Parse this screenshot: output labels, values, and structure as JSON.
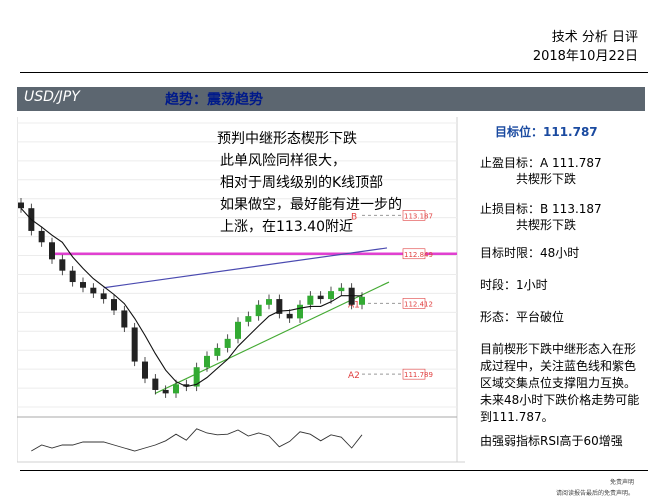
{
  "header": {
    "title": "技术 分析 日评",
    "date": "2018年10月22日"
  },
  "titlebar": {
    "pair": "USD/JPY",
    "trend": "趋势：震荡趋势"
  },
  "annotation": [
    "预判中继形态楔形下跌",
    "此单风险同样很大，",
    "相对于周线级别的K线顶部",
    "如果做空，最好能有进一步的",
    "上涨，在113.40附近"
  ],
  "side": {
    "target": "目标位：111.787",
    "tp_label": "止盈目标：A 111.787",
    "tp_sub": "共楔形下跌",
    "sl_label": "止损目标：B 113.187",
    "sl_sub": "共楔形下跌",
    "horizon": "目标时限：48小时",
    "timeframe": "时段：1小时",
    "pattern": "形态：平台破位",
    "desc": [
      "目前楔形下跌中继形态入在形",
      "成过程中，关注蓝色线和紫色",
      "区域交集点位支撑阻力互换。",
      "未来48小时下跌价格走势可能",
      "到111.787。"
    ],
    "rsi": "由强弱指标RSI高于60增强"
  },
  "footer": {
    "disc1": "免责声明",
    "disc2": "请阅读报告最后的免责声明。"
  },
  "colors": {
    "titlebar": "#5c6670",
    "magenta": "#e040d0",
    "blue_line": "#4a4ab0",
    "green_line": "#44aa33",
    "price_label": "#e04040",
    "target_text": "#1a4aa0"
  },
  "chart_data": {
    "type": "line",
    "series": [
      {
        "values": [
          113.25,
          113.05,
          112.95,
          112.8,
          112.7,
          112.6,
          112.55,
          112.5,
          112.45,
          112.35,
          112.2,
          111.9,
          111.75,
          111.65,
          111.62,
          111.7,
          111.68,
          111.85,
          111.95,
          112.02,
          112.1,
          112.25,
          112.3,
          112.4,
          112.45,
          112.32,
          112.28,
          112.4,
          112.48,
          112.45,
          112.52,
          112.55,
          112.4,
          112.47
        ]
      }
    ],
    "levels": [
      {
        "label": "B",
        "value": 113.187,
        "tag": "113.187"
      },
      {
        "value": 112.849,
        "tag": "112.849"
      },
      {
        "label": "A1",
        "value": 112.412,
        "tag": "112.412"
      },
      {
        "label": "A2",
        "value": 111.789,
        "tag": "111.789"
      }
    ],
    "ylim": [
      111.5,
      114.0
    ]
  }
}
